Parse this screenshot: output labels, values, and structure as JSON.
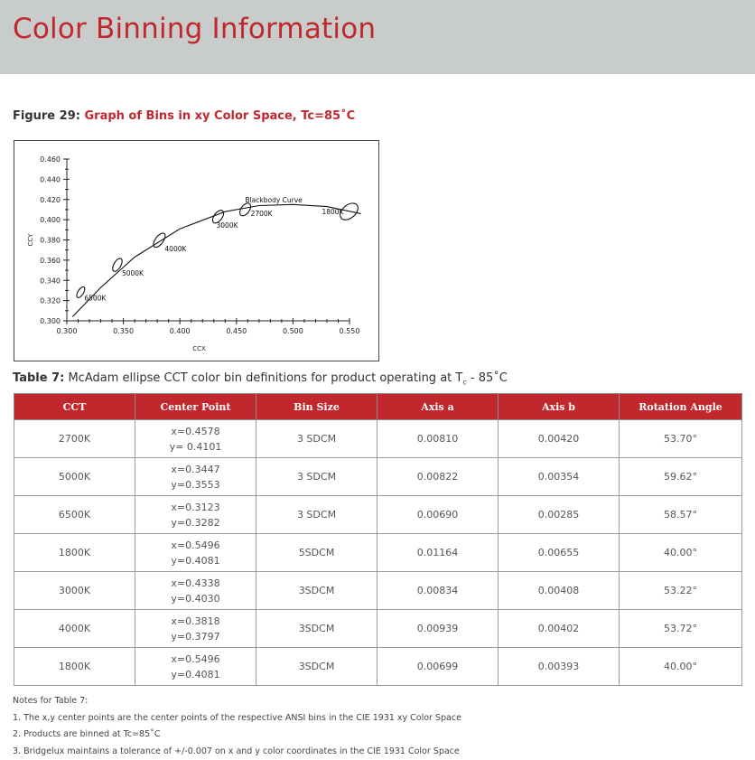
{
  "header": {
    "title": "Color Binning Information"
  },
  "figure": {
    "number": "Figure 29:",
    "title": "Graph of Bins in xy Color Space, Tc=85˚C"
  },
  "chart_data": {
    "type": "scatter",
    "xlabel": "CCX",
    "ylabel": "CCY",
    "xlim": [
      0.3,
      0.55
    ],
    "ylim": [
      0.3,
      0.46
    ],
    "xticks": [
      "0.300",
      "0.350",
      "0.400",
      "0.450",
      "0.500",
      "0.550"
    ],
    "yticks": [
      "0.460",
      "0.440",
      "0.420",
      "0.400",
      "0.380",
      "0.360",
      "0.340",
      "0.320",
      "0.300"
    ],
    "curve_label": "Blackbody Curve",
    "curve": [
      [
        0.305,
        0.304
      ],
      [
        0.33,
        0.333
      ],
      [
        0.36,
        0.363
      ],
      [
        0.4,
        0.391
      ],
      [
        0.44,
        0.408
      ],
      [
        0.47,
        0.414
      ],
      [
        0.5,
        0.415
      ],
      [
        0.53,
        0.413
      ],
      [
        0.56,
        0.406
      ]
    ],
    "points": [
      {
        "label": "6500K",
        "x": 0.3123,
        "y": 0.3282,
        "axis_a": 0.0069,
        "axis_b": 0.00285,
        "angle": 58.57
      },
      {
        "label": "5000K",
        "x": 0.3447,
        "y": 0.3553,
        "axis_a": 0.00822,
        "axis_b": 0.00354,
        "angle": 59.62
      },
      {
        "label": "4000K",
        "x": 0.3818,
        "y": 0.3797,
        "axis_a": 0.00939,
        "axis_b": 0.00402,
        "angle": 53.72
      },
      {
        "label": "3000K",
        "x": 0.4338,
        "y": 0.403,
        "axis_a": 0.00834,
        "axis_b": 0.00408,
        "angle": 53.22
      },
      {
        "label": "2700K",
        "x": 0.4578,
        "y": 0.4101,
        "axis_a": 0.0081,
        "axis_b": 0.0042,
        "angle": 53.7
      },
      {
        "label": "1800K",
        "x": 0.5496,
        "y": 0.4081,
        "axis_a": 0.01164,
        "axis_b": 0.00655,
        "angle": 40.0
      }
    ]
  },
  "table": {
    "number": "Table 7:",
    "caption_pre": "McAdam ellipse CCT color bin definitions for product operating at T",
    "caption_sub": "c",
    "caption_post": " - 85˚C",
    "headers": [
      "CCT",
      "Center Point",
      "Bin Size",
      "Axis a",
      "Axis b",
      "Rotation Angle"
    ],
    "rows": [
      {
        "cct": "2700K",
        "x": "x=0.4578",
        "y": "y= 0.4101",
        "bin": "3 SDCM",
        "a": "0.00810",
        "b": "0.00420",
        "rot": "53.70°"
      },
      {
        "cct": "5000K",
        "x": "x=0.3447",
        "y": "y=0.3553",
        "bin": "3 SDCM",
        "a": "0.00822",
        "b": "0.00354",
        "rot": "59.62°"
      },
      {
        "cct": "6500K",
        "x": "x=0.3123",
        "y": "y=0.3282",
        "bin": "3 SDCM",
        "a": "0.00690",
        "b": "0.00285",
        "rot": "58.57°"
      },
      {
        "cct": "1800K",
        "x": "x=0.5496",
        "y": "y=0.4081",
        "bin": "5SDCM",
        "a": "0.01164",
        "b": "0.00655",
        "rot": "40.00°"
      },
      {
        "cct": "3000K",
        "x": "x=0.4338",
        "y": "y=0.4030",
        "bin": "3SDCM",
        "a": "0.00834",
        "b": "0.00408",
        "rot": "53.22°"
      },
      {
        "cct": "4000K",
        "x": "x=0.3818",
        "y": "y=0.3797",
        "bin": "3SDCM",
        "a": "0.00939",
        "b": "0.00402",
        "rot": "53.72°"
      },
      {
        "cct": "1800K",
        "x": "x=0.5496",
        "y": "y=0.4081",
        "bin": "3SDCM",
        "a": "0.00699",
        "b": "0.00393",
        "rot": "40.00°"
      }
    ]
  },
  "notes": {
    "title": "Notes for Table 7:",
    "items": [
      "1.  The x,y center points are the center points of the respective ANSI bins in the CIE 1931 xy Color Space",
      "2.  Products are binned at Tc=85˚C",
      "3.  Bridgelux maintains a tolerance of +/-0.007 on x and y color coordinates in the CIE 1931 Color Space"
    ]
  }
}
